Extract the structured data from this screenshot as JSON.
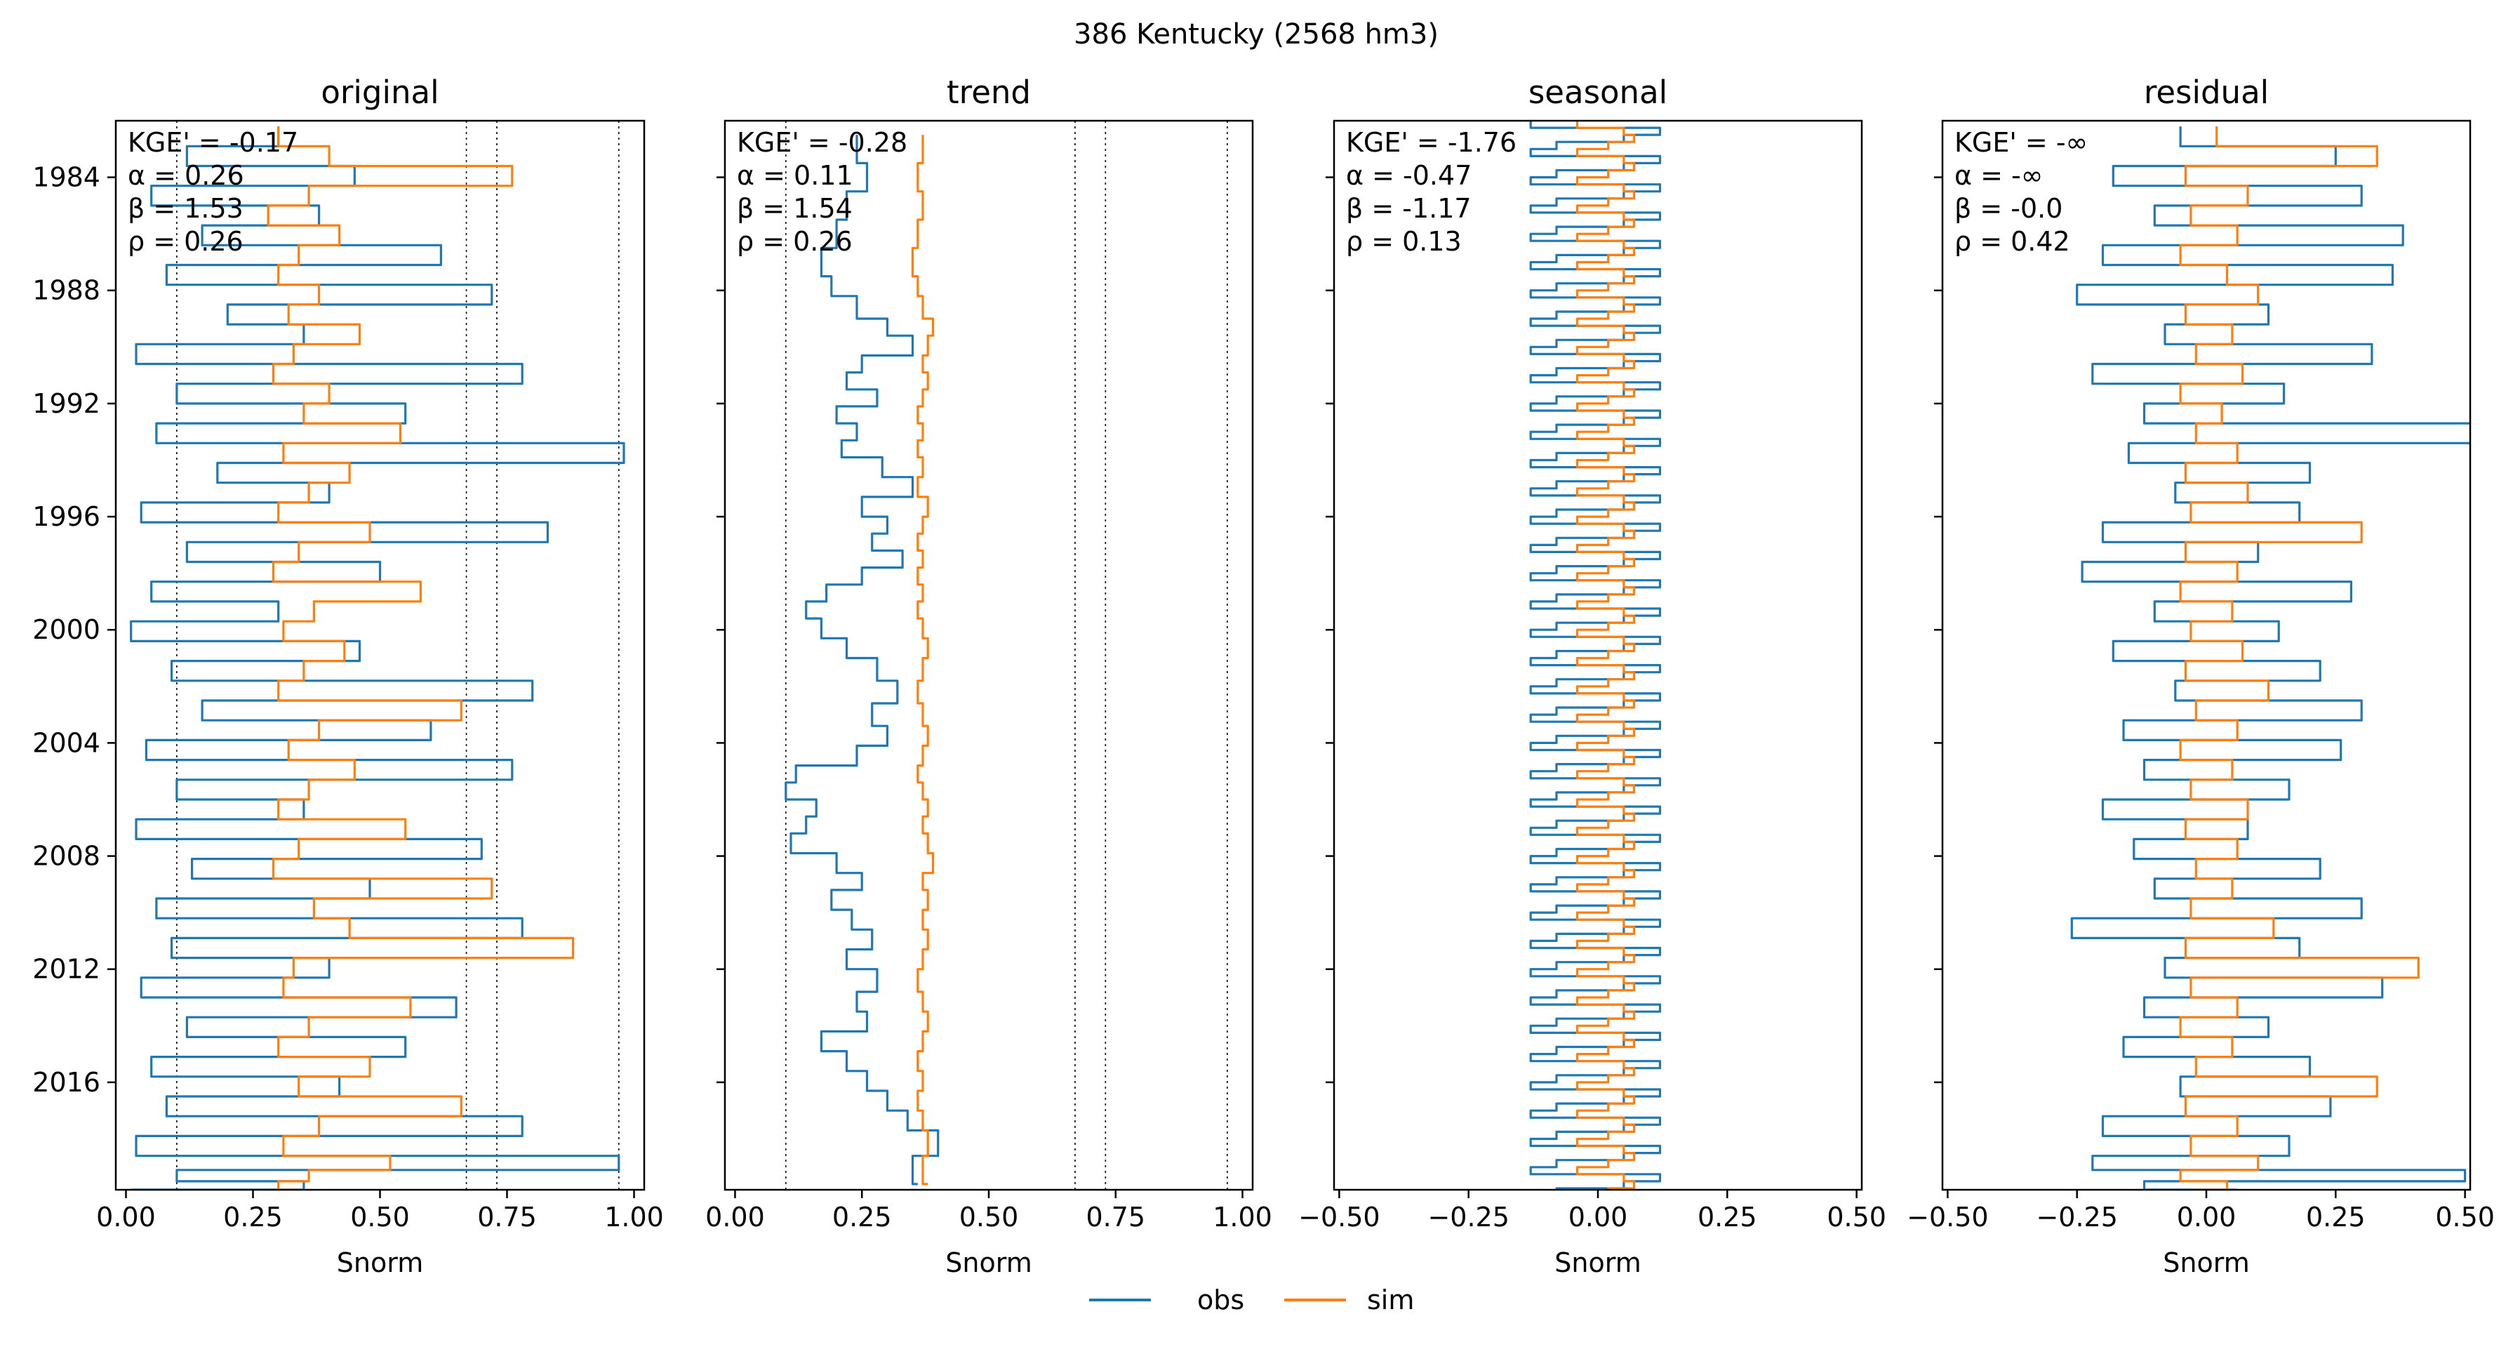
{
  "figure": {
    "title": "386  Kentucky (2568 hm3)"
  },
  "legend": [
    {
      "label": "obs",
      "color": "#1f77b4"
    },
    {
      "label": "sim",
      "color": "#ff7f0e"
    }
  ],
  "chart_data": [
    {
      "type": "line",
      "orientation": "vertical-time",
      "title": "original",
      "xlabel": "Snorm",
      "xlim": [
        -0.02,
        1.02
      ],
      "ylim": [
        1982.0,
        2019.8
      ],
      "y_inverted": true,
      "xticks": [
        "0.00",
        "0.25",
        "0.50",
        "0.75",
        "1.00"
      ],
      "yticks": [
        "1984",
        "1988",
        "1992",
        "1996",
        "2000",
        "2004",
        "2008",
        "2012",
        "2016"
      ],
      "reference_lines_x": [
        0.1,
        0.67,
        0.73,
        0.97
      ],
      "metrics": [
        "KGE' = -0.17",
        "α = 0.26",
        "β = 1.53",
        "ρ = 0.26"
      ],
      "series": [
        {
          "name": "obs",
          "color": "#1f77b4",
          "x": [
            0.3,
            0.12,
            0.45,
            0.05,
            0.38,
            0.15,
            0.62,
            0.08,
            0.72,
            0.2,
            0.35,
            0.02,
            0.78,
            0.1,
            0.55,
            0.06,
            0.98,
            0.18,
            0.4,
            0.03,
            0.83,
            0.12,
            0.5,
            0.05,
            0.3,
            0.01,
            0.46,
            0.09,
            0.8,
            0.15,
            0.6,
            0.04,
            0.76,
            0.1,
            0.35,
            0.02,
            0.7,
            0.13,
            0.48,
            0.06,
            0.78,
            0.09,
            0.4,
            0.03,
            0.65,
            0.12,
            0.55,
            0.05,
            0.42,
            0.08,
            0.78,
            0.02,
            0.97,
            0.1,
            0.35,
            0.01
          ],
          "y": [
            1982.2,
            1982.9,
            1983.6,
            1984.3,
            1985.0,
            1985.7,
            1986.4,
            1987.1,
            1987.8,
            1988.5,
            1989.2,
            1989.9,
            1990.6,
            1991.3,
            1992.0,
            1992.7,
            1993.4,
            1994.1,
            1994.8,
            1995.5,
            1996.2,
            1996.9,
            1997.6,
            1998.3,
            1999.0,
            1999.7,
            2000.4,
            2001.1,
            2001.8,
            2002.5,
            2003.2,
            2003.9,
            2004.6,
            2005.3,
            2006.0,
            2006.7,
            2007.4,
            2008.1,
            2008.8,
            2009.5,
            2010.2,
            2010.9,
            2011.6,
            2012.3,
            2013.0,
            2013.7,
            2014.4,
            2015.1,
            2015.8,
            2016.5,
            2017.2,
            2017.9,
            2018.6,
            2019.1,
            2019.5,
            2019.8
          ]
        },
        {
          "name": "sim",
          "color": "#ff7f0e",
          "x": [
            0.3,
            0.4,
            0.76,
            0.36,
            0.28,
            0.42,
            0.34,
            0.3,
            0.38,
            0.32,
            0.46,
            0.33,
            0.29,
            0.4,
            0.35,
            0.54,
            0.31,
            0.44,
            0.36,
            0.3,
            0.48,
            0.34,
            0.29,
            0.58,
            0.37,
            0.31,
            0.43,
            0.35,
            0.3,
            0.66,
            0.38,
            0.32,
            0.45,
            0.36,
            0.3,
            0.55,
            0.34,
            0.29,
            0.72,
            0.37,
            0.44,
            0.88,
            0.33,
            0.31,
            0.56,
            0.36,
            0.3,
            0.48,
            0.34,
            0.66,
            0.38,
            0.31,
            0.52,
            0.36,
            0.3,
            0.34
          ],
          "y": [
            1982.2,
            1982.9,
            1983.6,
            1984.3,
            1985.0,
            1985.7,
            1986.4,
            1987.1,
            1987.8,
            1988.5,
            1989.2,
            1989.9,
            1990.6,
            1991.3,
            1992.0,
            1992.7,
            1993.4,
            1994.1,
            1994.8,
            1995.5,
            1996.2,
            1996.9,
            1997.6,
            1998.3,
            1999.0,
            1999.7,
            2000.4,
            2001.1,
            2001.8,
            2002.5,
            2003.2,
            2003.9,
            2004.6,
            2005.3,
            2006.0,
            2006.7,
            2007.4,
            2008.1,
            2008.8,
            2009.5,
            2010.2,
            2010.9,
            2011.6,
            2012.3,
            2013.0,
            2013.7,
            2014.4,
            2015.1,
            2015.8,
            2016.5,
            2017.2,
            2017.9,
            2018.6,
            2019.1,
            2019.5,
            2019.8
          ]
        }
      ]
    },
    {
      "type": "line",
      "orientation": "vertical-time",
      "title": "trend",
      "xlabel": "Snorm",
      "xlim": [
        -0.02,
        1.02
      ],
      "ylim": [
        1982.0,
        2019.8
      ],
      "y_inverted": true,
      "xticks": [
        "0.00",
        "0.25",
        "0.50",
        "0.75",
        "1.00"
      ],
      "yticks": [],
      "reference_lines_x": [
        0.1,
        0.67,
        0.73,
        0.97
      ],
      "metrics": [
        "KGE' = -0.28",
        "α = 0.11",
        "β = 1.54",
        "ρ = 0.26"
      ],
      "series": [
        {
          "name": "obs",
          "color": "#1f77b4",
          "x": [
            0.24,
            0.26,
            0.22,
            0.2,
            0.17,
            0.19,
            0.24,
            0.3,
            0.35,
            0.25,
            0.22,
            0.28,
            0.2,
            0.24,
            0.21,
            0.29,
            0.35,
            0.25,
            0.3,
            0.27,
            0.33,
            0.25,
            0.18,
            0.14,
            0.17,
            0.22,
            0.28,
            0.32,
            0.27,
            0.3,
            0.24,
            0.12,
            0.1,
            0.16,
            0.14,
            0.11,
            0.2,
            0.25,
            0.19,
            0.23,
            0.27,
            0.22,
            0.28,
            0.24,
            0.26,
            0.17,
            0.22,
            0.26,
            0.3,
            0.34,
            0.4,
            0.35,
            0.36
          ],
          "y": [
            1982.5,
            1983.5,
            1984.5,
            1985.5,
            1986.5,
            1987.5,
            1988.2,
            1989.0,
            1989.6,
            1990.3,
            1990.9,
            1991.5,
            1992.1,
            1992.7,
            1993.3,
            1993.9,
            1994.6,
            1995.3,
            1996.0,
            1996.6,
            1997.2,
            1997.8,
            1998.4,
            1999.0,
            1999.6,
            2000.3,
            2001.0,
            2001.8,
            2002.6,
            2003.4,
            2004.1,
            2004.8,
            2005.4,
            2006.0,
            2006.6,
            2007.2,
            2007.9,
            2008.6,
            2009.2,
            2009.9,
            2010.6,
            2011.3,
            2012.0,
            2012.8,
            2013.5,
            2014.2,
            2014.9,
            2015.6,
            2016.3,
            2017.0,
            2017.7,
            2018.6,
            2019.6
          ]
        },
        {
          "name": "sim",
          "color": "#ff7f0e",
          "x": [
            0.37,
            0.36,
            0.37,
            0.36,
            0.35,
            0.36,
            0.37,
            0.39,
            0.38,
            0.37,
            0.38,
            0.37,
            0.36,
            0.37,
            0.36,
            0.37,
            0.36,
            0.38,
            0.37,
            0.36,
            0.37,
            0.36,
            0.37,
            0.36,
            0.37,
            0.38,
            0.37,
            0.36,
            0.37,
            0.38,
            0.37,
            0.36,
            0.37,
            0.38,
            0.37,
            0.38,
            0.39,
            0.37,
            0.38,
            0.37,
            0.38,
            0.37,
            0.36,
            0.37,
            0.38,
            0.37,
            0.36,
            0.37,
            0.36,
            0.37,
            0.38,
            0.37,
            0.38
          ],
          "y": [
            1982.5,
            1983.5,
            1984.5,
            1985.5,
            1986.5,
            1987.5,
            1988.2,
            1989.0,
            1989.6,
            1990.3,
            1990.9,
            1991.5,
            1992.1,
            1992.7,
            1993.3,
            1993.9,
            1994.6,
            1995.3,
            1996.0,
            1996.6,
            1997.2,
            1997.8,
            1998.4,
            1999.0,
            1999.6,
            2000.3,
            2001.0,
            2001.8,
            2002.6,
            2003.4,
            2004.1,
            2004.8,
            2005.4,
            2006.0,
            2006.6,
            2007.2,
            2007.9,
            2008.6,
            2009.2,
            2009.9,
            2010.6,
            2011.3,
            2012.0,
            2012.8,
            2013.5,
            2014.2,
            2014.9,
            2015.6,
            2016.3,
            2017.0,
            2017.7,
            2018.6,
            2019.6
          ]
        }
      ]
    },
    {
      "type": "line",
      "orientation": "vertical-time",
      "title": "seasonal",
      "xlabel": "Snorm",
      "xlim": [
        -0.51,
        0.51
      ],
      "ylim": [
        1982.0,
        2019.8
      ],
      "y_inverted": true,
      "xticks": [
        "−0.50",
        "−0.25",
        "0.00",
        "0.25",
        "0.50"
      ],
      "yticks": [],
      "reference_lines_x": [],
      "metrics": [
        "KGE' = -1.76",
        "α = -0.47",
        "β = -1.17",
        "ρ = 0.13"
      ],
      "seasonal_pattern": {
        "start_year": 1982,
        "end_year": 2020,
        "obs_quarter_values": [
          -0.13,
          0.12,
          0.05,
          -0.08
        ],
        "sim_quarter_values": [
          -0.04,
          0.05,
          0.07,
          0.02
        ]
      }
    },
    {
      "type": "line",
      "orientation": "vertical-time",
      "title": "residual",
      "xlabel": "Snorm",
      "xlim": [
        -0.51,
        0.51
      ],
      "ylim": [
        1982.0,
        2019.8
      ],
      "y_inverted": true,
      "xticks": [
        "−0.50",
        "−0.25",
        "0.00",
        "0.25",
        "0.50"
      ],
      "yticks": [],
      "reference_lines_x": [],
      "metrics": [
        "KGE' = -∞",
        "α = -∞",
        "β = -0.0",
        "ρ = 0.42"
      ],
      "series": [
        {
          "name": "obs",
          "color": "#1f77b4",
          "x": [
            -0.05,
            0.25,
            -0.18,
            0.3,
            -0.1,
            0.38,
            -0.2,
            0.36,
            -0.25,
            0.12,
            -0.08,
            0.32,
            -0.22,
            0.15,
            -0.12,
            0.52,
            -0.15,
            0.2,
            -0.06,
            0.18,
            -0.2,
            0.1,
            -0.24,
            0.28,
            -0.1,
            0.14,
            -0.18,
            0.22,
            -0.06,
            0.3,
            -0.16,
            0.26,
            -0.12,
            0.16,
            -0.2,
            0.08,
            -0.14,
            0.22,
            -0.1,
            0.3,
            -0.26,
            0.18,
            -0.08,
            0.34,
            -0.12,
            0.12,
            -0.16,
            0.2,
            -0.05,
            0.24,
            -0.2,
            0.16,
            -0.22,
            0.5,
            -0.12,
            0.06
          ],
          "y": [
            1982.2,
            1982.9,
            1983.6,
            1984.3,
            1985.0,
            1985.7,
            1986.4,
            1987.1,
            1987.8,
            1988.5,
            1989.2,
            1989.9,
            1990.6,
            1991.3,
            1992.0,
            1992.7,
            1993.4,
            1994.1,
            1994.8,
            1995.5,
            1996.2,
            1996.9,
            1997.6,
            1998.3,
            1999.0,
            1999.7,
            2000.4,
            2001.1,
            2001.8,
            2002.5,
            2003.2,
            2003.9,
            2004.6,
            2005.3,
            2006.0,
            2006.7,
            2007.4,
            2008.1,
            2008.8,
            2009.5,
            2010.2,
            2010.9,
            2011.6,
            2012.3,
            2013.0,
            2013.7,
            2014.4,
            2015.1,
            2015.8,
            2016.5,
            2017.2,
            2017.9,
            2018.6,
            2019.1,
            2019.5,
            2019.8
          ]
        },
        {
          "name": "sim",
          "color": "#ff7f0e",
          "x": [
            0.02,
            0.33,
            -0.04,
            0.08,
            -0.03,
            0.06,
            -0.05,
            0.04,
            0.1,
            -0.04,
            0.05,
            -0.02,
            0.07,
            -0.05,
            0.03,
            -0.02,
            0.06,
            -0.04,
            0.08,
            -0.03,
            0.3,
            -0.04,
            0.06,
            -0.05,
            0.05,
            -0.03,
            0.07,
            -0.04,
            0.12,
            -0.02,
            0.06,
            -0.05,
            0.05,
            -0.03,
            0.08,
            -0.04,
            0.06,
            -0.02,
            0.05,
            -0.03,
            0.13,
            -0.04,
            0.41,
            -0.03,
            0.06,
            -0.05,
            0.05,
            -0.02,
            0.33,
            -0.04,
            0.06,
            -0.03,
            0.1,
            -0.05,
            0.04,
            -0.02
          ],
          "y": [
            1982.2,
            1982.9,
            1983.6,
            1984.3,
            1985.0,
            1985.7,
            1986.4,
            1987.1,
            1987.8,
            1988.5,
            1989.2,
            1989.9,
            1990.6,
            1991.3,
            1992.0,
            1992.7,
            1993.4,
            1994.1,
            1994.8,
            1995.5,
            1996.2,
            1996.9,
            1997.6,
            1998.3,
            1999.0,
            1999.7,
            2000.4,
            2001.1,
            2001.8,
            2002.5,
            2003.2,
            2003.9,
            2004.6,
            2005.3,
            2006.0,
            2006.7,
            2007.4,
            2008.1,
            2008.8,
            2009.5,
            2010.2,
            2010.9,
            2011.6,
            2012.3,
            2013.0,
            2013.7,
            2014.4,
            2015.1,
            2015.8,
            2016.5,
            2017.2,
            2017.9,
            2018.6,
            2019.1,
            2019.5,
            2019.8
          ]
        }
      ]
    }
  ]
}
